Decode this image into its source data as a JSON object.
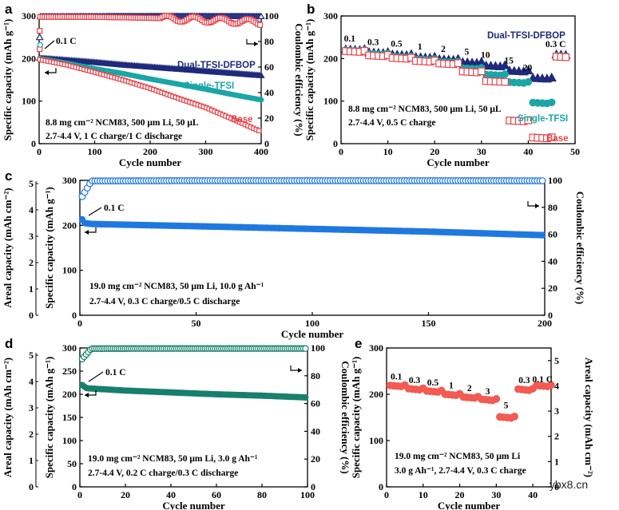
{
  "watermark": "ybx8.cn",
  "colors": {
    "navy": "#1f2a7a",
    "teal": "#1aa6a6",
    "red": "#e8434b",
    "blue": "#1f78e0",
    "green": "#17806c",
    "salmon": "#f25a52"
  },
  "chart_data": [
    {
      "panel": "a",
      "type": "scatter",
      "xlabel": "Cycle number",
      "ylabel": "Specific capacity (mAh g⁻¹)",
      "ylabel_right": "Coulombic efficiency (%)",
      "xlim": [
        0,
        400
      ],
      "xticks": [
        "0",
        "100",
        "200",
        "300",
        "400"
      ],
      "ylim": [
        0,
        300
      ],
      "yticks": [
        "0",
        "100",
        "200",
        "300"
      ],
      "ylim_right": [
        0,
        100
      ],
      "yticks_right": [
        "0",
        "20",
        "40",
        "60",
        "80",
        "100"
      ],
      "annotations": [
        "0.1 C",
        "8.8 mg cm⁻² NCM83, 500 μm Li, 50 μL",
        "2.7-4.4 V, 1 C charge/1 C discharge"
      ],
      "series": [
        {
          "name": "Dual-TFSI-DFBOP",
          "color": "#1f2a7a",
          "axis": "left",
          "x": [
            0,
            50,
            100,
            150,
            200,
            250,
            300,
            350,
            400
          ],
          "values": [
            201,
            196,
            191,
            185,
            180,
            175,
            170,
            165,
            160
          ]
        },
        {
          "name": "Single-TFSI",
          "color": "#1aa6a6",
          "axis": "left",
          "x": [
            0,
            50,
            100,
            150,
            200,
            250,
            300,
            350,
            400
          ],
          "values": [
            200,
            189,
            176,
            165,
            152,
            140,
            128,
            115,
            103
          ]
        },
        {
          "name": "Base",
          "color": "#e8434b",
          "axis": "left",
          "x": [
            0,
            50,
            100,
            150,
            200,
            250,
            300,
            350,
            400
          ],
          "values": [
            198,
            185,
            168,
            150,
            130,
            107,
            85,
            57,
            28
          ]
        },
        {
          "name": "Dual-TFSI-DFBOP CE",
          "color": "#1f2a7a",
          "axis": "right",
          "x": [
            10,
            100,
            200,
            300,
            400
          ],
          "values": [
            99.5,
            99.6,
            99.7,
            99.7,
            99.6
          ]
        },
        {
          "name": "Base CE",
          "color": "#e8434b",
          "axis": "right",
          "x": [
            10,
            100,
            200,
            300,
            400
          ],
          "values": [
            99.3,
            99.2,
            98.5,
            97,
            95
          ]
        }
      ]
    },
    {
      "panel": "b",
      "type": "scatter",
      "xlabel": "Cycle number",
      "ylabel": "Specific capacity (mAh g⁻¹)",
      "xlim": [
        0,
        50
      ],
      "xticks": [
        "0",
        "10",
        "20",
        "30",
        "40",
        "50"
      ],
      "ylim": [
        0,
        300
      ],
      "yticks": [
        "0",
        "100",
        "200",
        "300"
      ],
      "annotations": [
        "8.8 mg cm⁻² NCM83, 500 μm Li, 50 μL",
        "2.7-4.4 V, 0.5 C charge"
      ],
      "rate_labels": [
        "0.1",
        "0.3",
        "0.5",
        "1",
        "2",
        "5",
        "10",
        "15",
        "20",
        "0.3 C"
      ],
      "series": [
        {
          "name": "Dual-TFSI-DFBOP",
          "color": "#1f2a7a",
          "x": [
            1,
            6,
            11,
            16,
            21,
            26,
            31,
            36,
            41,
            46
          ],
          "values": [
            222,
            215,
            210,
            204,
            199,
            192,
            184,
            172,
            155,
            210
          ]
        },
        {
          "name": "Single-TFSI",
          "color": "#1aa6a6",
          "x": [
            1,
            6,
            11,
            16,
            21,
            26,
            31,
            36,
            41,
            46
          ],
          "values": [
            220,
            212,
            205,
            199,
            193,
            178,
            163,
            145,
            97,
            207
          ]
        },
        {
          "name": "Base",
          "color": "#e8434b",
          "x": [
            1,
            6,
            11,
            16,
            21,
            26,
            31,
            36,
            41,
            46
          ],
          "values": [
            218,
            208,
            202,
            195,
            189,
            170,
            147,
            55,
            15,
            205
          ]
        }
      ]
    },
    {
      "panel": "c",
      "type": "scatter",
      "xlabel": "Cycle number",
      "ylabel": "Specific capacity (mAh g⁻¹)",
      "ylabel_outer": "Areal capacity (mAh cm⁻²)",
      "ylabel_right": "Coulombic efficiency (%)",
      "xlim": [
        0,
        200
      ],
      "xticks": [
        "0",
        "50",
        "100",
        "150",
        "200"
      ],
      "ylim": [
        0,
        300
      ],
      "yticks": [
        "0",
        "100",
        "200",
        "300"
      ],
      "outer_ticks": [
        "0",
        "1",
        "2",
        "3",
        "4",
        "5"
      ],
      "ylim_right": [
        0,
        100
      ],
      "yticks_right": [
        "0",
        "20",
        "40",
        "60",
        "80",
        "100"
      ],
      "annotations": [
        "0.1 C",
        "19.0 mg cm⁻² NCM83, 50 μm Li, 10.0 g Ah⁻¹",
        "2.7-4.4 V, 0.3 C charge/0.5 C discharge"
      ],
      "series": [
        {
          "name": "Capacity",
          "color": "#1f78e0",
          "axis": "left",
          "x": [
            1,
            2,
            5,
            50,
            100,
            150,
            200
          ],
          "values": [
            213,
            205,
            203,
            198,
            192,
            186,
            178
          ]
        },
        {
          "name": "Coulombic efficiency",
          "color": "#1f78e0",
          "axis": "right",
          "x": [
            1,
            5,
            50,
            100,
            150,
            200
          ],
          "values": [
            88,
            99.6,
            99.8,
            99.8,
            99.8,
            99.7
          ]
        }
      ]
    },
    {
      "panel": "d",
      "type": "scatter",
      "xlabel": "Cycle number",
      "ylabel": "Specific capacity (mAh g⁻¹)",
      "ylabel_outer": "Areal capacity (mAh cm⁻²)",
      "ylabel_right": "Coulombic efficiency (%)",
      "xlim": [
        0,
        100
      ],
      "xticks": [
        "0",
        "20",
        "40",
        "60",
        "80",
        "100"
      ],
      "ylim": [
        0,
        300
      ],
      "yticks": [
        "0",
        "50",
        "100",
        "150",
        "200",
        "250",
        "300"
      ],
      "outer_ticks": [
        "0",
        "1",
        "2",
        "3",
        "4",
        "5"
      ],
      "ylim_right": [
        0,
        100
      ],
      "yticks_right": [
        "0",
        "20",
        "40",
        "60",
        "80",
        "100"
      ],
      "annotations": [
        "0.1 C",
        "19.0 mg cm⁻² NCM83, 50 μm Li, 3.0 g Ah⁻¹",
        "2.7-4.4 V, 0.2 C charge/0.3 C discharge"
      ],
      "series": [
        {
          "name": "Capacity",
          "color": "#17806c",
          "axis": "left",
          "x": [
            1,
            3,
            20,
            40,
            60,
            80,
            100
          ],
          "values": [
            220,
            213,
            208,
            204,
            200,
            197,
            193
          ]
        },
        {
          "name": "Coulombic efficiency",
          "color": "#17806c",
          "axis": "right",
          "x": [
            1,
            5,
            25,
            50,
            75,
            100
          ],
          "values": [
            92,
            99.5,
            99.6,
            99.6,
            99.6,
            99.6
          ]
        }
      ]
    },
    {
      "panel": "e",
      "type": "scatter",
      "xlabel": "Cycle number",
      "ylabel": "Specific capacity (mAh g⁻¹)",
      "ylabel_right": "Areal capacity (mAh cm⁻²)",
      "xlim": [
        0,
        45
      ],
      "xticks": [
        "0",
        "10",
        "20",
        "30",
        "40"
      ],
      "ylim": [
        0,
        300
      ],
      "yticks": [
        "0",
        "100",
        "200",
        "300"
      ],
      "ylim_right": [
        0,
        5.5
      ],
      "yticks_right": [
        "0",
        "1",
        "2",
        "3",
        "4",
        "5"
      ],
      "annotations": [
        "19.0 mg cm⁻² NCM83, 50 μm Li",
        "3.0 g Ah⁻¹, 2.7-4.4 V, 0.3 C charge"
      ],
      "rate_labels": [
        "0.1",
        "0.3",
        "0.5",
        "1",
        "2",
        "3",
        "5",
        "0.3",
        "0.1 C"
      ],
      "series": [
        {
          "name": "Capacity",
          "color": "#f25a52",
          "x": [
            1,
            6,
            11,
            16,
            21,
            26,
            31,
            36,
            41
          ],
          "values": [
            220,
            213,
            208,
            201,
            195,
            190,
            152,
            212,
            220
          ]
        }
      ]
    }
  ]
}
